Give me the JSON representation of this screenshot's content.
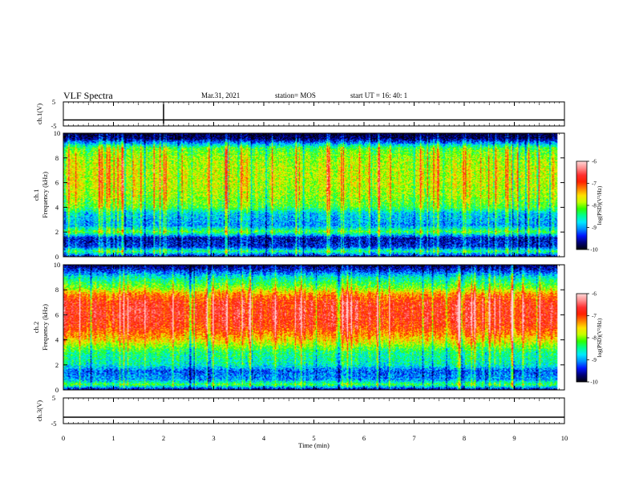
{
  "header": {
    "title": "VLF Spectra",
    "date": "Mar.31, 2021",
    "station": "station= MOS",
    "start_ut": "start  UT =   16: 40: 1"
  },
  "colors": {
    "spectrogram_palette": [
      "#000010",
      "#00007a",
      "#0016ff",
      "#0090ff",
      "#00eaff",
      "#00ff90",
      "#30ff00",
      "#c8ff00",
      "#ffe000",
      "#ff8000",
      "#ff2000",
      "#ff2e2e",
      "#ff8a8a",
      "#ffd4d4"
    ]
  },
  "chart_data": [
    {
      "type": "line",
      "name": "ch1-waveform",
      "ylabel": "ch.1(V)",
      "yticks": [
        "5",
        "-5"
      ],
      "ylim": [
        -5,
        5
      ],
      "x": [
        0,
        10
      ],
      "y": [
        -2.5,
        -2.5
      ],
      "xlim": [
        0,
        10
      ],
      "vertical_spikes_min": [
        2.0
      ]
    },
    {
      "type": "heatmap",
      "name": "ch1-spectrogram",
      "ylabel": "ch.1\nFrequency (kHz)",
      "xlim": [
        0,
        10
      ],
      "data_end_min": 9.85,
      "ylim": [
        0,
        10
      ],
      "yticks": [
        "0",
        "2",
        "4",
        "6",
        "8",
        "10"
      ],
      "colorbar": {
        "label": "log(PSD)(V²/Hz)",
        "range": [
          -10,
          -6
        ],
        "ticks": [
          "-6",
          "-7",
          "-8",
          "-9",
          "-10"
        ]
      },
      "band_profile_khz": [
        {
          "f": 0.0,
          "level": 0.1
        },
        {
          "f": 0.4,
          "level": 0.4
        },
        {
          "f": 0.8,
          "level": 0.15
        },
        {
          "f": 1.5,
          "level": 0.12
        },
        {
          "f": 2.0,
          "level": 0.45
        },
        {
          "f": 2.5,
          "level": 0.25
        },
        {
          "f": 3.5,
          "level": 0.3
        },
        {
          "f": 4.0,
          "level": 0.45
        },
        {
          "f": 5.0,
          "level": 0.52
        },
        {
          "f": 6.0,
          "level": 0.55
        },
        {
          "f": 7.0,
          "level": 0.55
        },
        {
          "f": 8.0,
          "level": 0.52
        },
        {
          "f": 8.8,
          "level": 0.45
        },
        {
          "f": 9.3,
          "level": 0.2
        },
        {
          "f": 9.6,
          "level": 0.05
        },
        {
          "f": 10.0,
          "level": 0.02
        }
      ]
    },
    {
      "type": "heatmap",
      "name": "ch2-spectrogram",
      "ylabel": "ch.2\nFrequency (kHz)",
      "xlim": [
        0,
        10
      ],
      "data_end_min": 9.85,
      "ylim": [
        0,
        10
      ],
      "yticks": [
        "0",
        "2",
        "4",
        "6",
        "8",
        "10"
      ],
      "colorbar": {
        "label": "log(PSD)(V²/Hz)",
        "range": [
          -10,
          -6
        ],
        "ticks": [
          "-6",
          "-7",
          "-8",
          "-9",
          "-10"
        ]
      },
      "band_profile_khz": [
        {
          "f": 0.0,
          "level": 0.1
        },
        {
          "f": 0.4,
          "level": 0.45
        },
        {
          "f": 0.8,
          "level": 0.25
        },
        {
          "f": 1.5,
          "level": 0.2
        },
        {
          "f": 2.0,
          "level": 0.35
        },
        {
          "f": 3.0,
          "level": 0.4
        },
        {
          "f": 4.0,
          "level": 0.62
        },
        {
          "f": 5.0,
          "level": 0.78
        },
        {
          "f": 6.0,
          "level": 0.82
        },
        {
          "f": 7.0,
          "level": 0.8
        },
        {
          "f": 7.6,
          "level": 0.7
        },
        {
          "f": 8.2,
          "level": 0.5
        },
        {
          "f": 9.0,
          "level": 0.35
        },
        {
          "f": 9.6,
          "level": 0.15
        },
        {
          "f": 10.0,
          "level": 0.05
        }
      ]
    },
    {
      "type": "line",
      "name": "ch3-waveform",
      "ylabel": "ch.3(V)",
      "yticks": [
        "5",
        "-5"
      ],
      "ylim": [
        -5,
        5
      ],
      "x": [
        0,
        10
      ],
      "y": [
        -2.5,
        -2.5
      ],
      "xlim": [
        0,
        10
      ]
    },
    {
      "type": "axis",
      "name": "time-axis",
      "xlabel": "Time (min)",
      "xticks": [
        "0",
        "1",
        "2",
        "3",
        "4",
        "5",
        "6",
        "7",
        "8",
        "9",
        "10"
      ]
    }
  ]
}
